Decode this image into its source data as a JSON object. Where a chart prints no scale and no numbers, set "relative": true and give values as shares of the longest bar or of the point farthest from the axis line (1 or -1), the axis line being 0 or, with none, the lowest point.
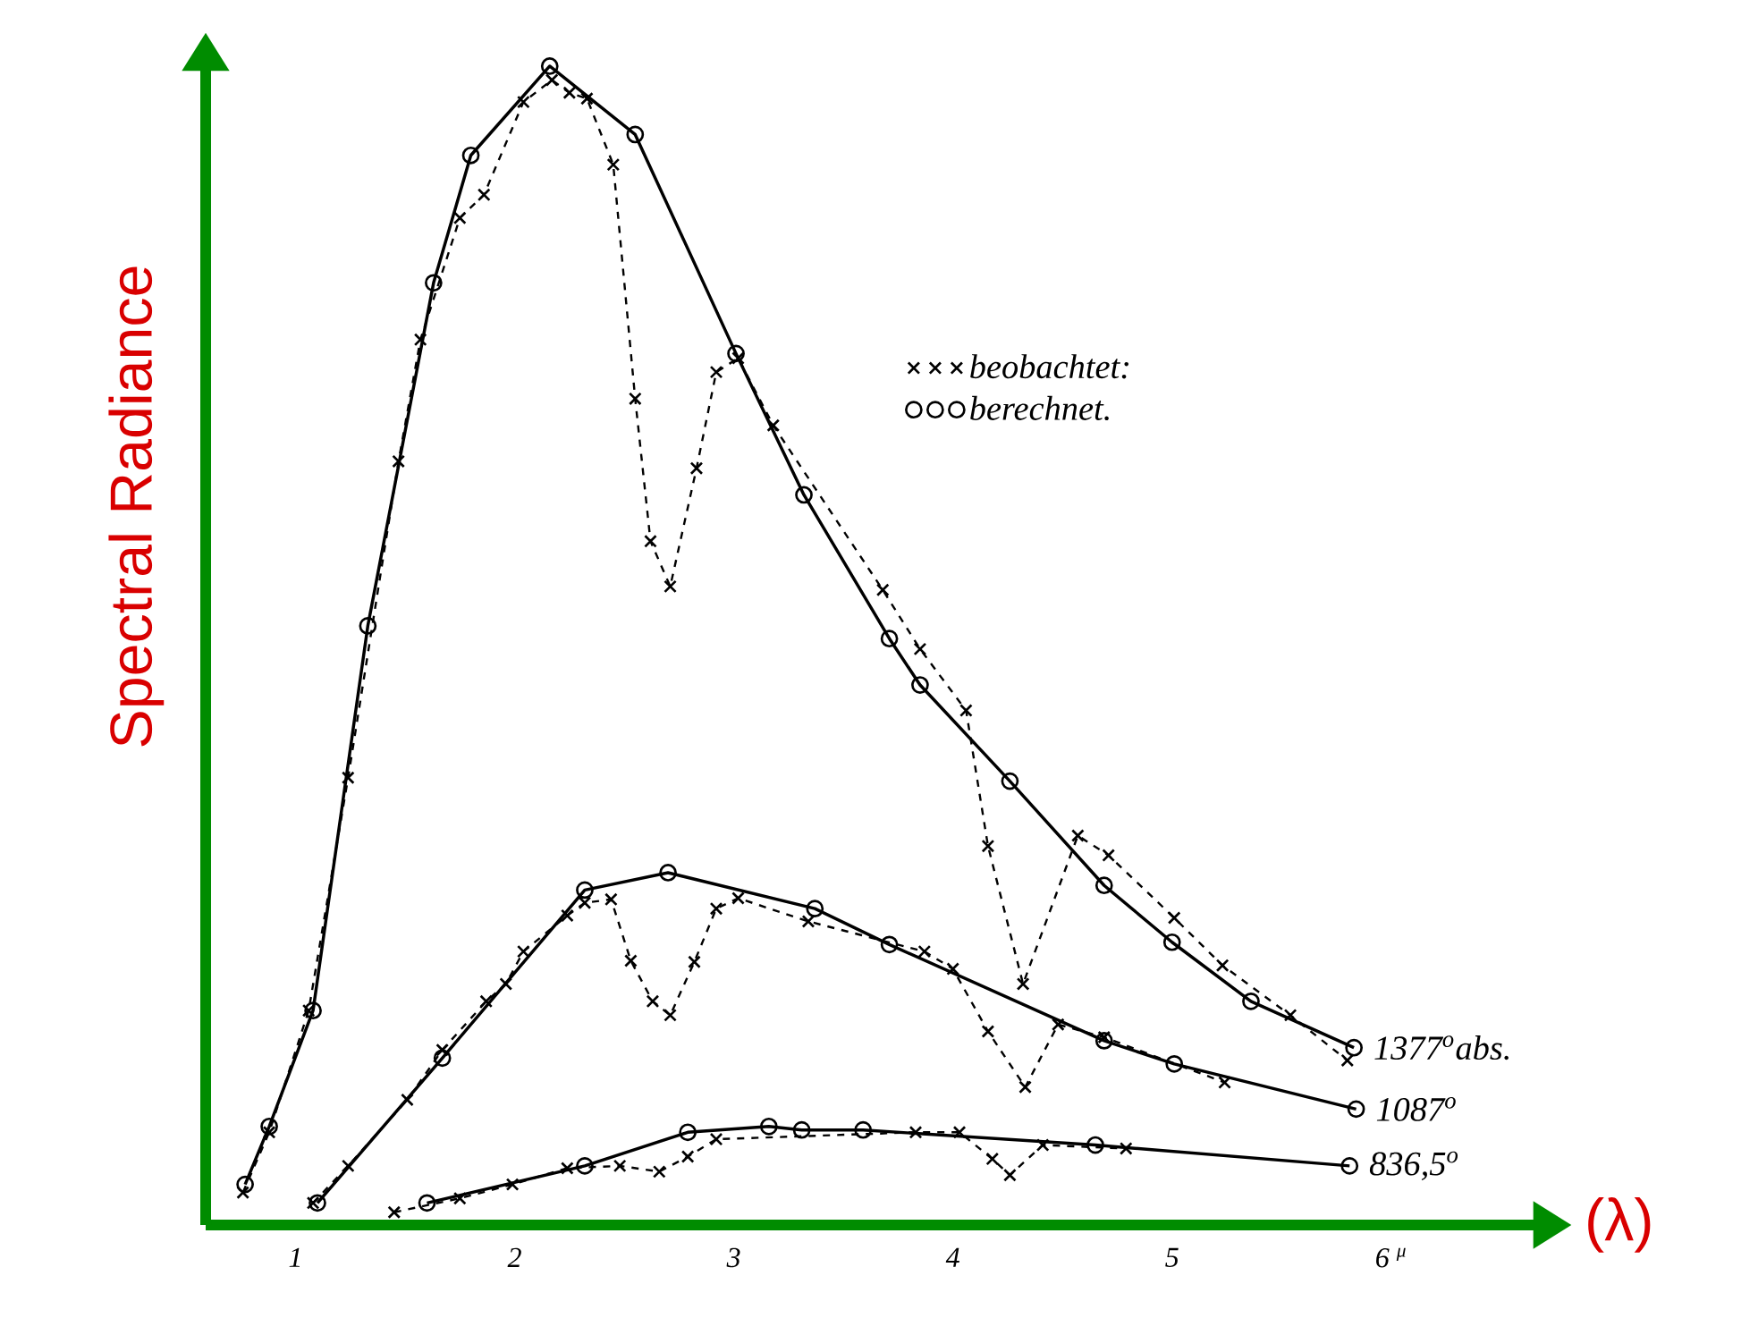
{
  "chart_data": {
    "type": "line",
    "relative": true,
    "xlabel": "(λ)",
    "ylabel": "Spectral Radiance",
    "xlim": [
      0.59,
      6.67
    ],
    "xticks": [
      1,
      2,
      3,
      4,
      5,
      {
        "value": 6,
        "label": "6 $^{μ}$"
      }
    ],
    "legend": "top right",
    "series": [
      {
        "name": "beobachtet:",
        "color": "#000000",
        "marker": "cross",
        "line_style": "dashed",
        "x": [
          0.76,
          0.88,
          1.06,
          1.24,
          1.47,
          1.57,
          1.75,
          1.86,
          2.04,
          2.17,
          2.25,
          2.33,
          2.45,
          2.55,
          2.62,
          2.71,
          2.83,
          2.92,
          3.02,
          3.18,
          3.68,
          3.85,
          4.06,
          4.16,
          4.32,
          4.57,
          4.71,
          5.01,
          5.23,
          5.54,
          5.8
        ],
        "values": [
          0.028,
          0.08,
          0.185,
          0.386,
          0.659,
          0.764,
          0.869,
          0.889,
          0.969,
          0.988,
          0.977,
          0.972,
          0.915,
          0.713,
          0.59,
          0.551,
          0.653,
          0.736,
          0.748,
          0.69,
          0.548,
          0.497,
          0.444,
          0.327,
          0.208,
          0.336,
          0.319,
          0.265,
          0.224,
          0.181,
          0.142
        ]
      },
      {
        "name": "berechnet.",
        "color": "#000000",
        "marker": "circle",
        "line_style": "solid",
        "x": [
          0.77,
          0.88,
          1.08,
          1.33,
          1.63,
          1.8,
          2.16,
          2.55,
          3.01,
          3.32,
          3.71,
          3.85,
          4.26,
          4.69,
          5.0,
          5.36,
          5.83
        ],
        "values": [
          0.035,
          0.085,
          0.185,
          0.517,
          0.813,
          0.923,
          1.0,
          0.941,
          0.752,
          0.63,
          0.506,
          0.466,
          0.383,
          0.293,
          0.244,
          0.193,
          0.153
        ]
      },
      {
        "color": "#000000",
        "marker": "cross",
        "line_style": "dashed",
        "x": [
          1.08,
          1.24,
          1.51,
          1.67,
          1.87,
          1.96,
          2.04,
          2.24,
          2.32,
          2.44,
          2.53,
          2.63,
          2.71,
          2.82,
          2.92,
          3.02,
          3.34,
          3.87,
          4.0,
          4.16,
          4.33,
          4.48,
          4.69,
          5.24
        ],
        "values": [
          0.019,
          0.051,
          0.108,
          0.151,
          0.193,
          0.208,
          0.236,
          0.267,
          0.278,
          0.281,
          0.228,
          0.193,
          0.181,
          0.227,
          0.273,
          0.282,
          0.262,
          0.236,
          0.221,
          0.167,
          0.119,
          0.173,
          0.162,
          0.123
        ]
      },
      {
        "color": "#000000",
        "marker": "circle",
        "line_style": "solid",
        "x": [
          1.1,
          1.67,
          2.32,
          2.7,
          3.37,
          3.71,
          4.69,
          5.01,
          5.84
        ],
        "values": [
          0.019,
          0.144,
          0.289,
          0.304,
          0.273,
          0.242,
          0.159,
          0.139,
          0.1
        ]
      },
      {
        "color": "#000000",
        "marker": "cross",
        "line_style": "dashed",
        "x": [
          1.45,
          1.75,
          1.99,
          2.24,
          2.48,
          2.66,
          2.79,
          2.92,
          3.83,
          4.03,
          4.18,
          4.26,
          4.41,
          4.79
        ],
        "values": [
          0.011,
          0.023,
          0.035,
          0.049,
          0.051,
          0.046,
          0.059,
          0.074,
          0.08,
          0.08,
          0.057,
          0.043,
          0.069,
          0.066
        ]
      },
      {
        "color": "#000000",
        "marker": "circle",
        "line_style": "solid",
        "x": [
          1.6,
          2.32,
          2.79,
          3.16,
          3.31,
          3.59,
          4.65,
          5.81
        ],
        "values": [
          0.019,
          0.051,
          0.08,
          0.085,
          0.082,
          0.082,
          0.069,
          0.051
        ]
      }
    ],
    "annotations": [
      {
        "text": "1377$^{o}$abs.",
        "x": 5.83,
        "y": 0.153
      },
      {
        "text": "1087$^{o}$",
        "x": 5.84,
        "y": 0.1
      },
      {
        "text": "836,5$^{o}$",
        "x": 5.81,
        "y": 0.051
      }
    ]
  }
}
